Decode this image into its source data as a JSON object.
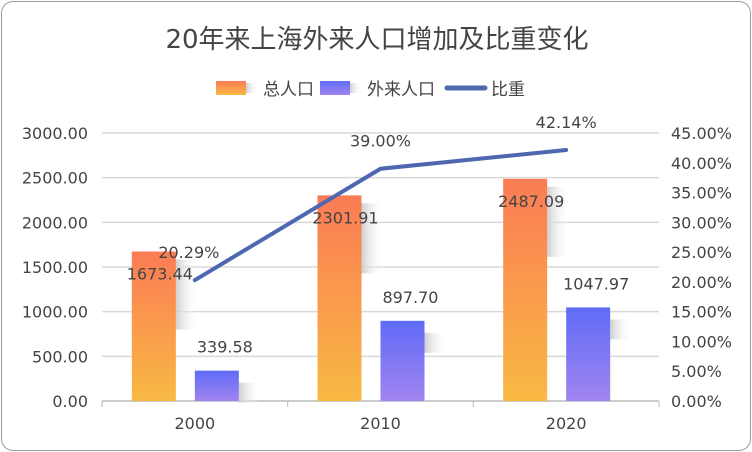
{
  "chart_data": {
    "type": "bar",
    "title": "20年来上海外来人口增加及比重变化",
    "categories": [
      "2000",
      "2010",
      "2020"
    ],
    "series": [
      {
        "name": "总人口",
        "type": "bar",
        "axis": "left",
        "values": [
          1673.44,
          2301.91,
          2487.09
        ],
        "labels": [
          "1673.44",
          "2301.91",
          "2487.09"
        ],
        "colors": [
          "#fb7b55",
          "#f8b943"
        ]
      },
      {
        "name": "外来人口",
        "type": "bar",
        "axis": "left",
        "values": [
          339.58,
          897.7,
          1047.97
        ],
        "labels": [
          "339.58",
          "897.70",
          "1047.97"
        ],
        "colors": [
          "#5f6cf7",
          "#a184f0"
        ]
      },
      {
        "name": "比重",
        "type": "line",
        "axis": "right",
        "values": [
          20.29,
          39.0,
          42.14
        ],
        "labels": [
          "20.29%",
          "39.00%",
          "42.14%"
        ],
        "colors": [
          "#4d67b0"
        ]
      }
    ],
    "yleft": {
      "lim": [
        0,
        3000
      ],
      "ticks": [
        "0.00",
        "500.00",
        "1000.00",
        "1500.00",
        "2000.00",
        "2500.00",
        "3000.00"
      ]
    },
    "yright": {
      "lim": [
        0,
        45
      ],
      "ticks": [
        "0.00%",
        "5.00%",
        "10.00%",
        "15.00%",
        "20.00%",
        "25.00%",
        "30.00%",
        "35.00%",
        "40.00%",
        "45.00%"
      ]
    },
    "legend": "top-center",
    "grid": true
  }
}
